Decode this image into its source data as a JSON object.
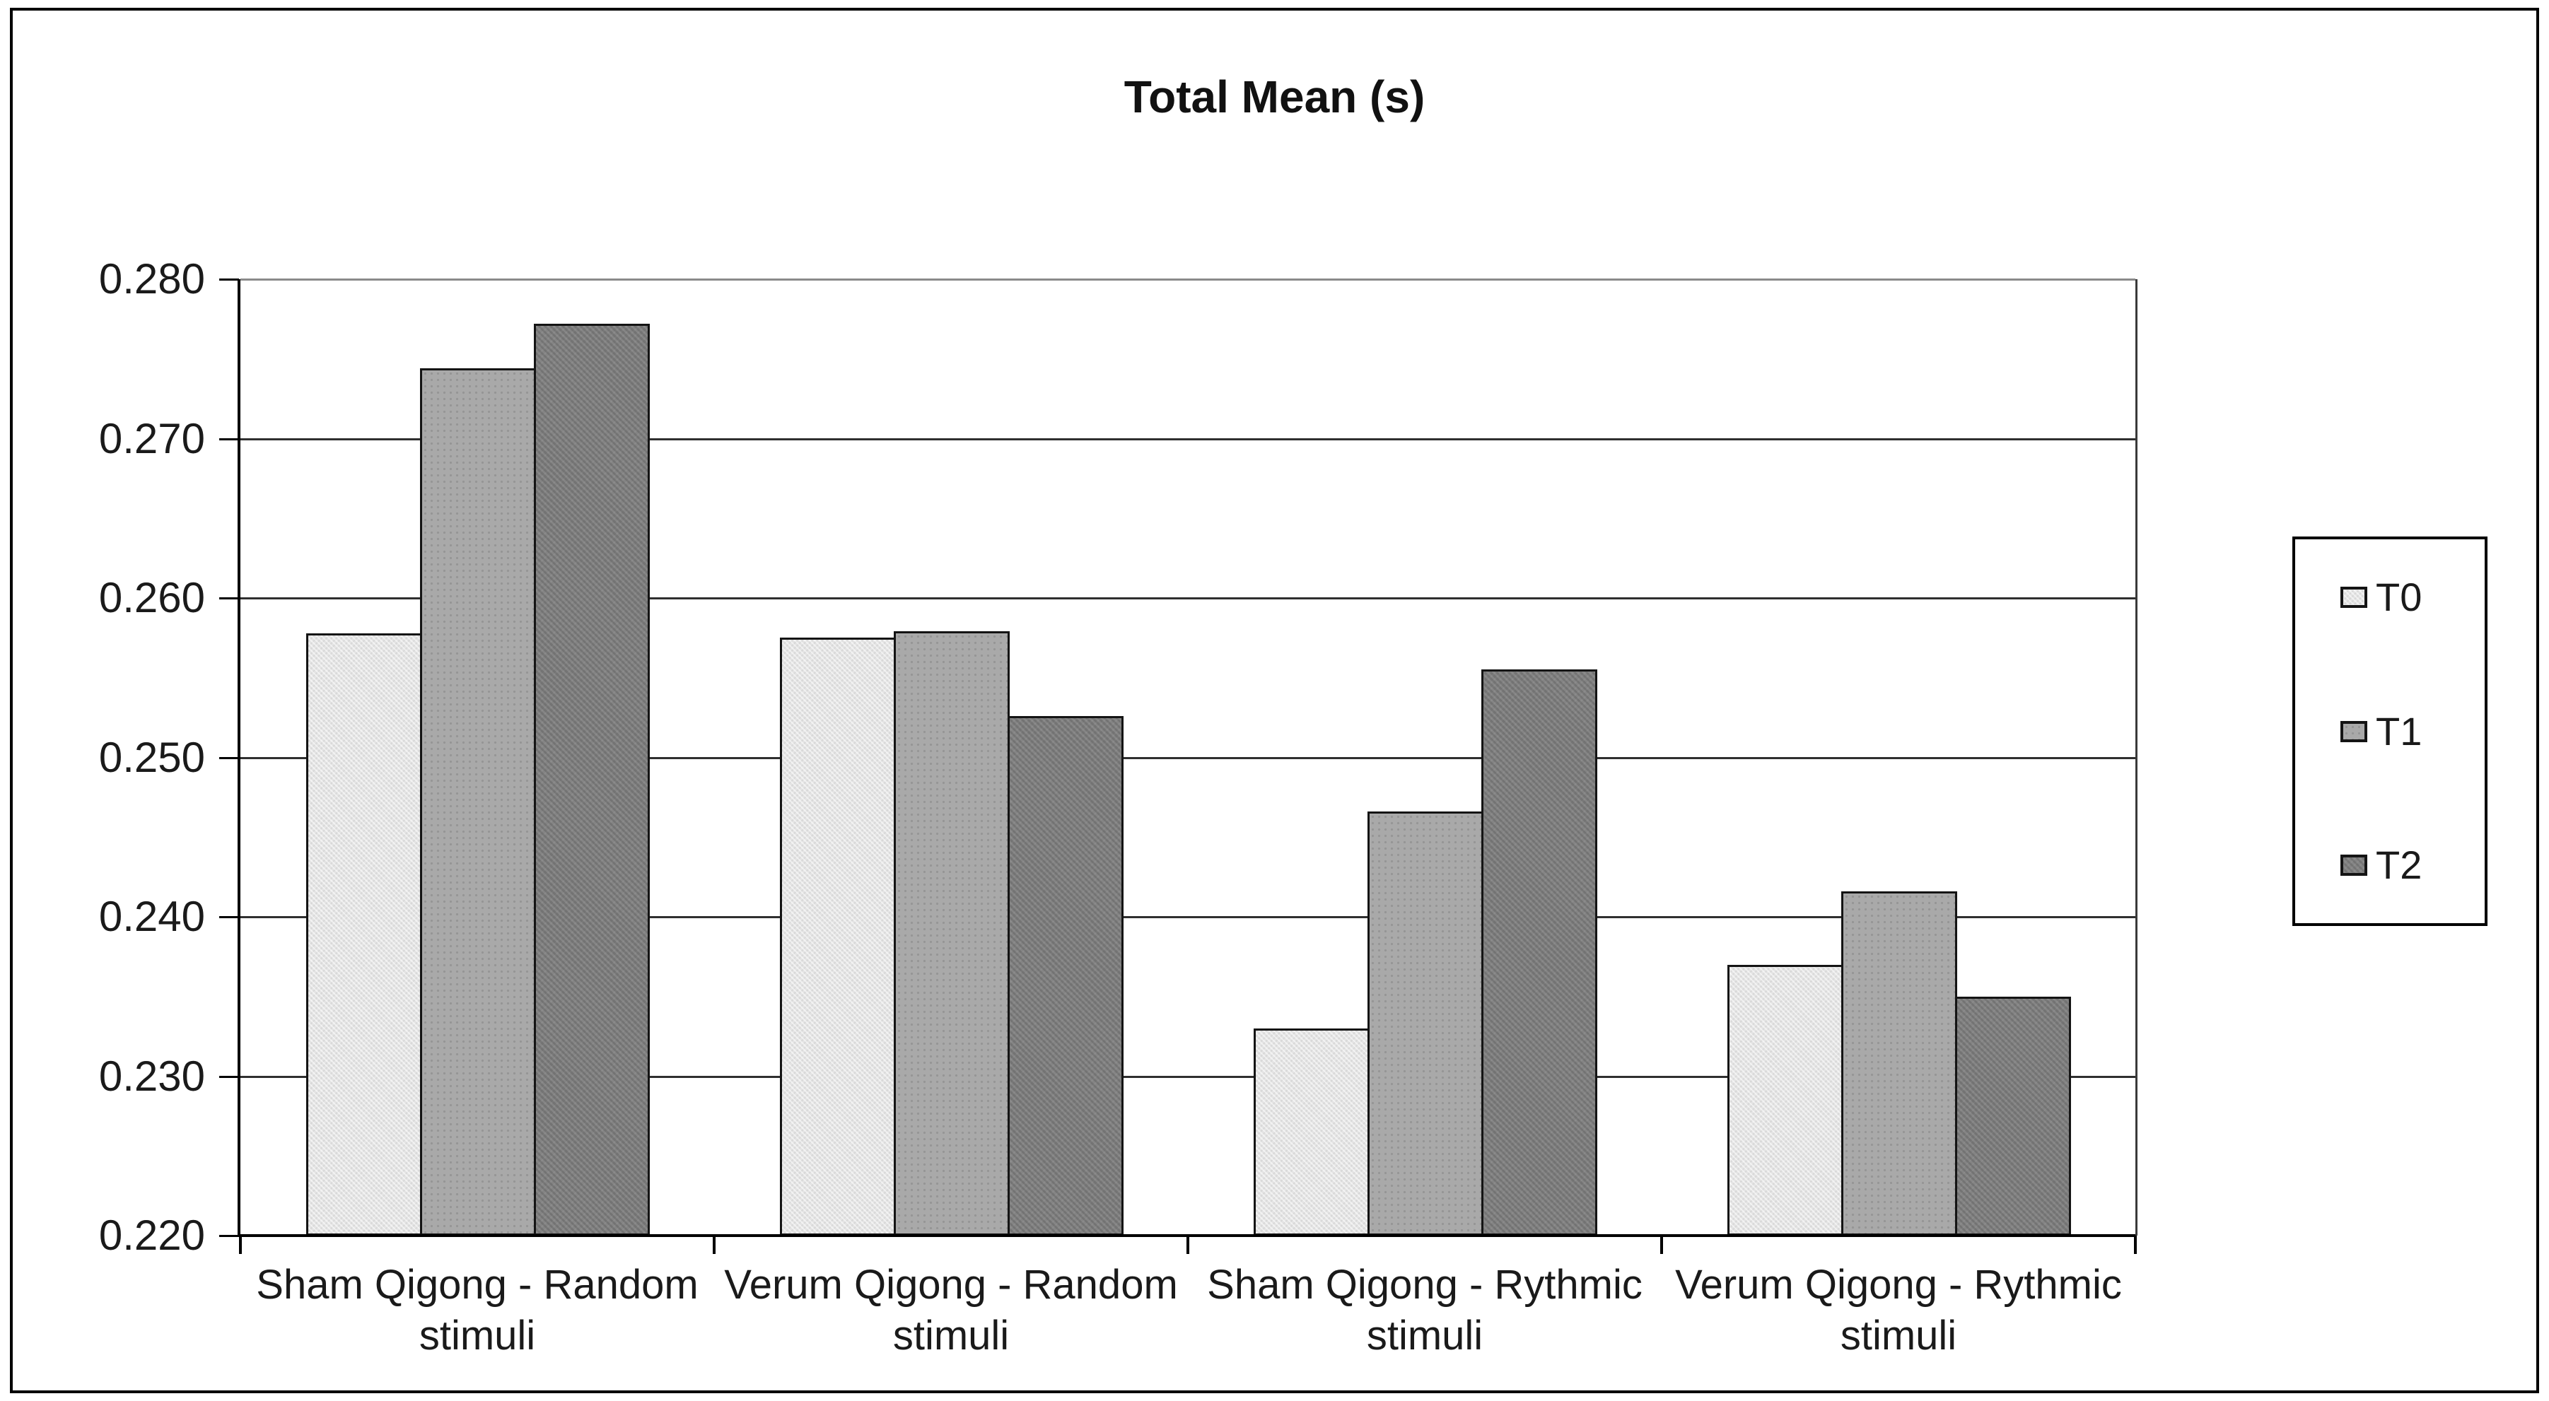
{
  "figure": {
    "title": "Total Mean (s)"
  },
  "y_axis": {
    "tick_labels": [
      "0.280",
      "0.270",
      "0.260",
      "0.250",
      "0.240",
      "0.230",
      "0.220"
    ]
  },
  "x_axis": {
    "category_labels": [
      "Sham Qigong - Random\nstimuli",
      "Verum Qigong - Random\nstimuli",
      "Sham Qigong -  Rythmic\nstimuli",
      "Verum Qigong -  Rythmic\nstimuli"
    ]
  },
  "legend": {
    "items": [
      {
        "label": "T0",
        "color": "#e4e4e4"
      },
      {
        "label": "T1",
        "color": "#a9a9a9"
      },
      {
        "label": "T2",
        "color": "#7a7a7a"
      }
    ]
  },
  "chart_data": {
    "type": "bar",
    "title": "Total Mean (s)",
    "categories": [
      "Sham Qigong - Random stimuli",
      "Verum Qigong - Random stimuli",
      "Sham Qigong - Rythmic stimuli",
      "Verum Qigong - Rythmic stimuli"
    ],
    "series": [
      {
        "name": "T0",
        "values": [
          0.2578,
          0.2575,
          0.233,
          0.237
        ]
      },
      {
        "name": "T1",
        "values": [
          0.2744,
          0.2579,
          0.2466,
          0.2416
        ]
      },
      {
        "name": "T2",
        "values": [
          0.2772,
          0.2526,
          0.2555,
          0.235
        ]
      }
    ],
    "ylim": [
      0.22,
      0.28
    ],
    "ytick_step": 0.01,
    "xlabel": "",
    "ylabel": "",
    "grid": "horizontal",
    "legend_position": "right",
    "bar_colors": {
      "T0": "#e4e4e4",
      "T1": "#a9a9a9",
      "T2": "#7a7a7a"
    }
  },
  "colors": {
    "background": "#ffffff",
    "figure_border": "#000000",
    "gridline": "#2f2f2f",
    "top_gridline": "#8a8a8a",
    "bar_border": "#141414",
    "text": "#1a1a1a"
  }
}
